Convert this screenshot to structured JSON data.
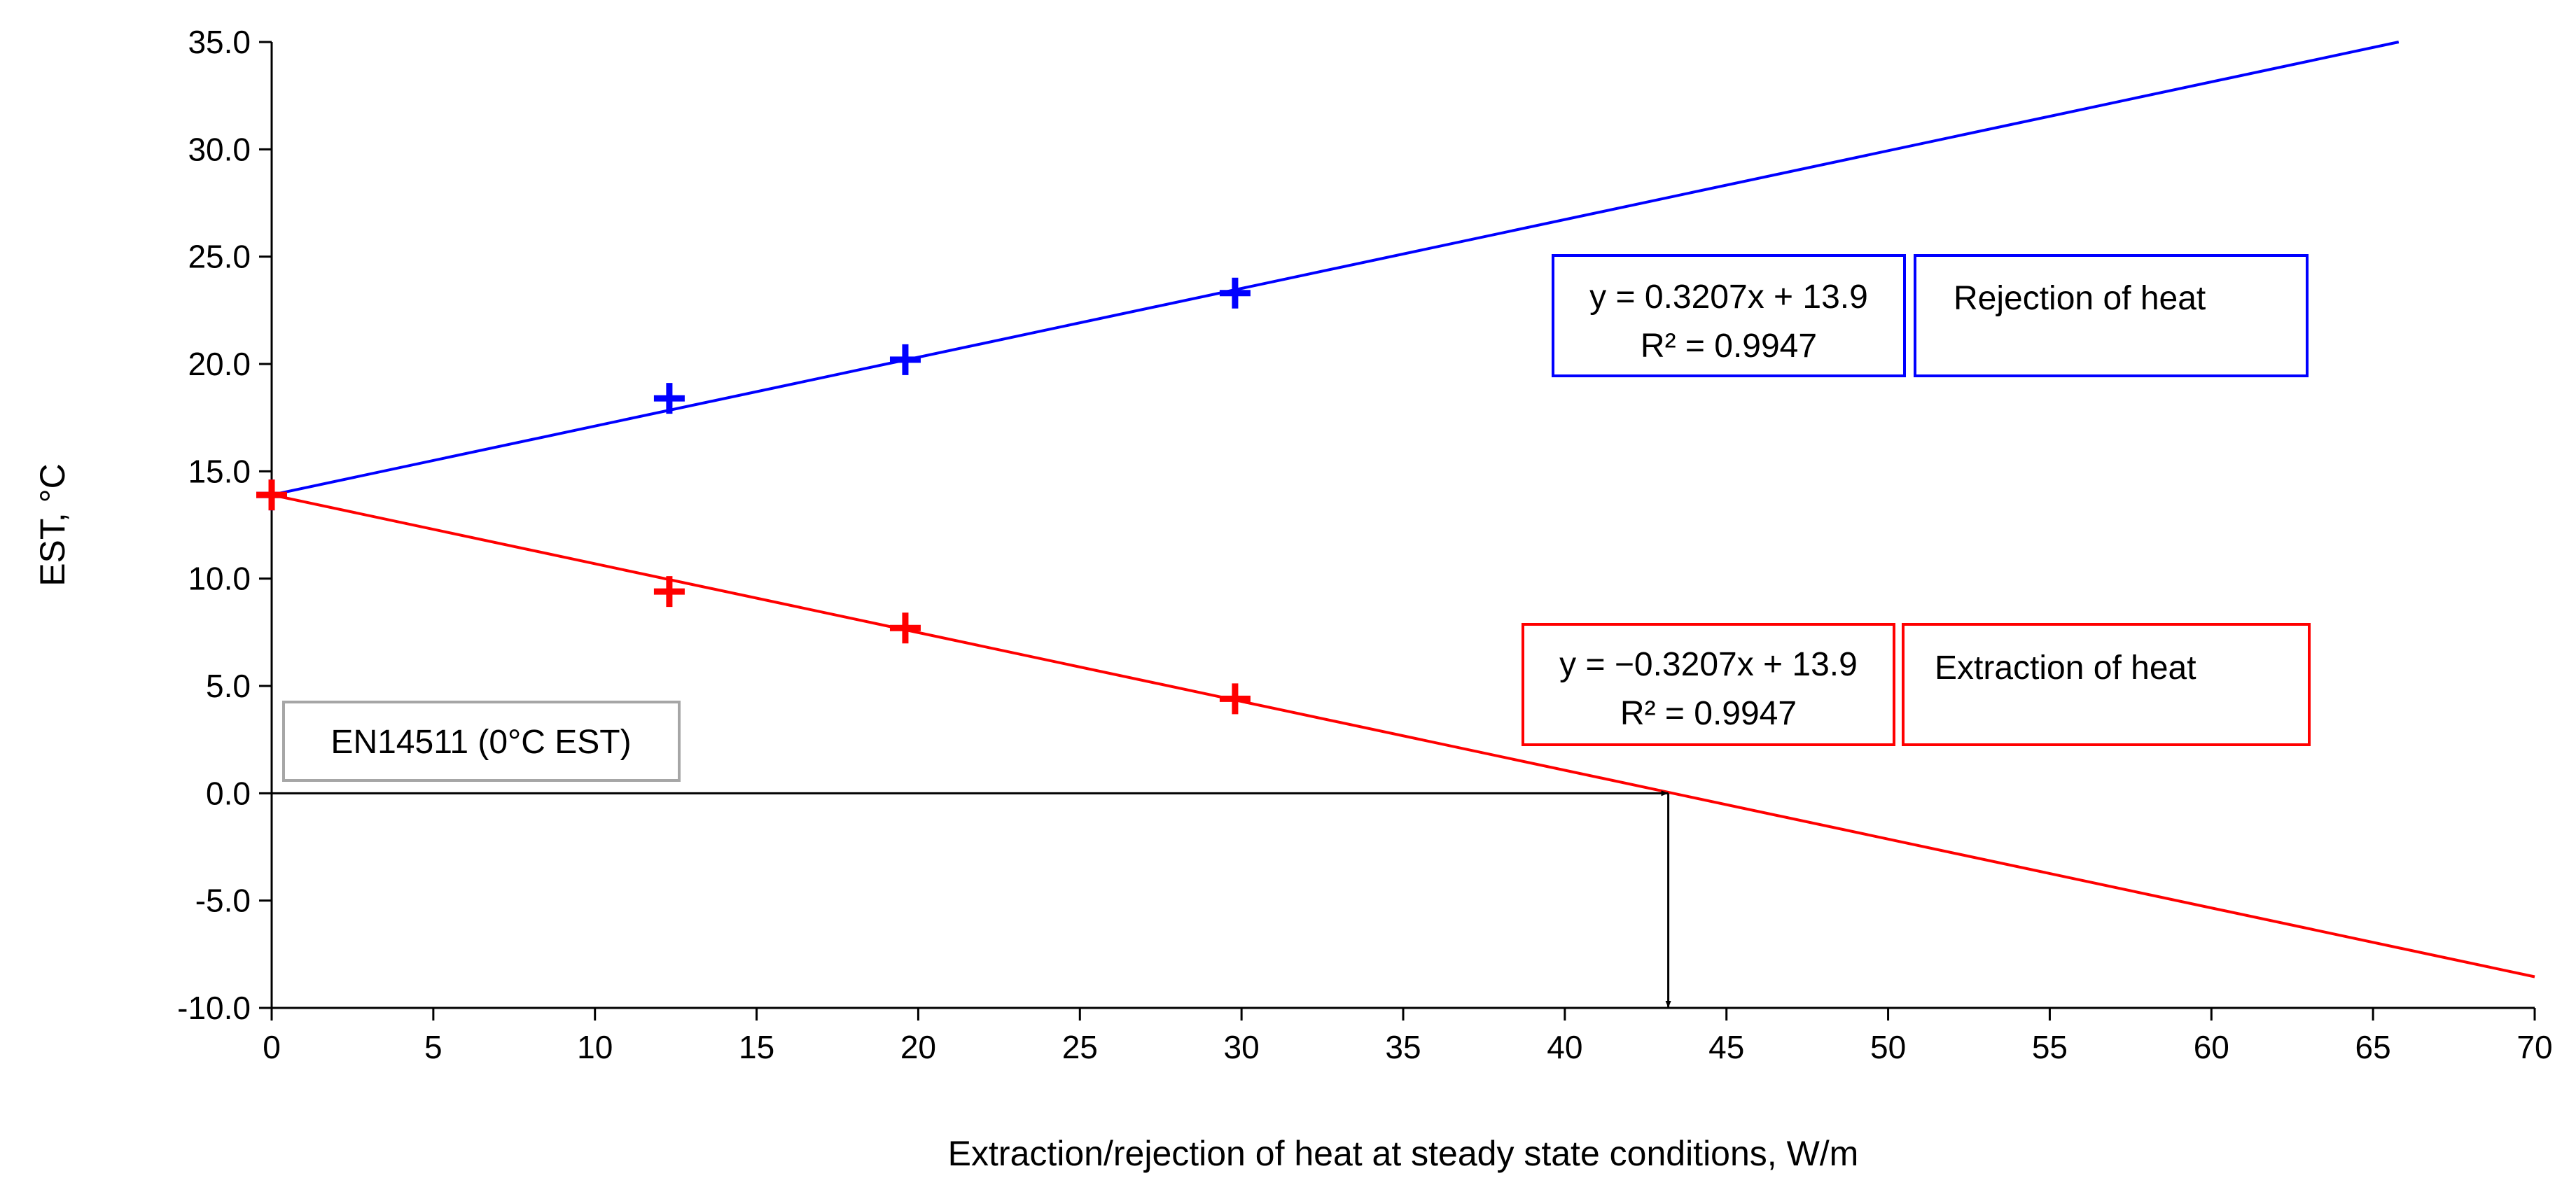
{
  "chart_data": {
    "type": "scatter",
    "title": "",
    "xlabel": "Extraction/rejection of heat at steady state conditions, W/m",
    "ylabel": "EST, °C",
    "xlim": [
      0,
      70
    ],
    "ylim": [
      -10,
      35
    ],
    "x_ticks": [
      "0",
      "5",
      "10",
      "15",
      "20",
      "25",
      "30",
      "35",
      "40",
      "45",
      "50",
      "55",
      "60",
      "65",
      "70"
    ],
    "y_ticks": [
      "-10.0",
      "-5.0",
      "0.0",
      "5.0",
      "10.0",
      "15.0",
      "20.0",
      "25.0",
      "30.0",
      "35.0"
    ],
    "series": [
      {
        "name": "Rejection of heat",
        "color": "#0000ff",
        "marker": "plus",
        "x": [
          0,
          12.3,
          19.6,
          29.8
        ],
        "y": [
          13.9,
          18.4,
          20.2,
          23.3
        ],
        "trendline": {
          "slope": 0.3207,
          "intercept": 13.9
        },
        "equation": "y = 0.3207x + 13.9",
        "r2": "R² = 0.9947"
      },
      {
        "name": "Extraction of heat",
        "color": "#ff0000",
        "marker": "plus",
        "x": [
          0,
          12.3,
          19.6,
          29.8
        ],
        "y": [
          13.9,
          9.4,
          7.7,
          4.4
        ],
        "trendline": {
          "slope": -0.3207,
          "intercept": 13.9
        },
        "equation": "y = −0.3207x + 13.9",
        "r2": "R² = 0.9947"
      }
    ],
    "annotations": [
      {
        "text": "EN14511 (0°C EST)",
        "color": "#a6a6a6"
      },
      {
        "type": "arrow",
        "from": [
          0,
          0
        ],
        "to": [
          43.2,
          0
        ]
      },
      {
        "type": "arrow",
        "from": [
          43.2,
          0
        ],
        "to": [
          43.2,
          -10
        ]
      }
    ]
  }
}
